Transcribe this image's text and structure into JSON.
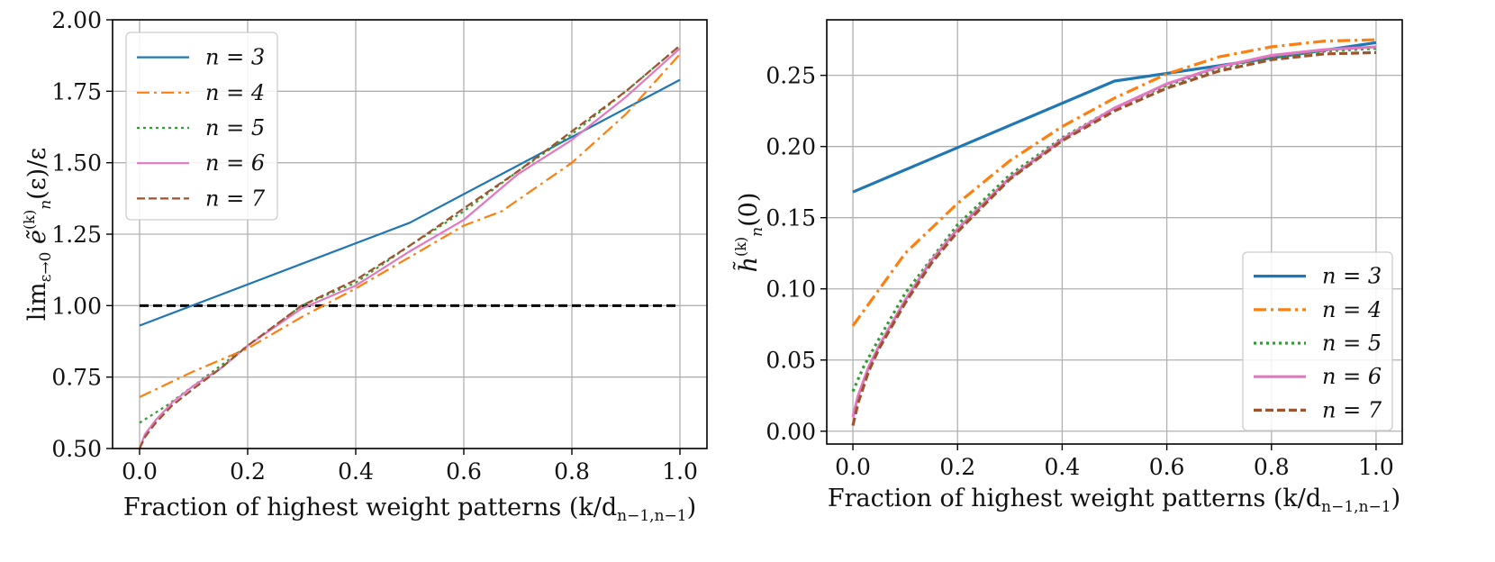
{
  "chart_data": [
    {
      "type": "line",
      "xlabel": "Fraction of highest weight patterns (k/d",
      "xlabel_sub": "n−1,n−1",
      "xlabel_close": ")",
      "ylabel": "lim",
      "ylabel_sub": "ε→0",
      "ylabel_main": " ẽ",
      "ylabel_sup": "(k)",
      "ylabel_sub2": "n",
      "ylabel_tail": "(ε)/ε",
      "xlim": [
        -0.05,
        1.05
      ],
      "ylim": [
        0.5,
        2.0
      ],
      "xticks": [
        0.0,
        0.2,
        0.4,
        0.6,
        0.8,
        1.0
      ],
      "xtick_labels": [
        "0.0",
        "0.2",
        "0.4",
        "0.6",
        "0.8",
        "1.0"
      ],
      "yticks": [
        0.5,
        0.75,
        1.0,
        1.25,
        1.5,
        1.75,
        2.0
      ],
      "ytick_labels": [
        "0.50",
        "0.75",
        "1.00",
        "1.25",
        "1.50",
        "1.75",
        "2.00"
      ],
      "grid": true,
      "legend_position": "top-left",
      "reference_line": {
        "y": 1.0,
        "x_from": 0.0,
        "x_to": 1.0,
        "style": "dashed",
        "color": "#000000"
      },
      "series": [
        {
          "name": "n = 3",
          "color": "#1f77b4",
          "style": "solid",
          "x": [
            0.0,
            0.5,
            1.0
          ],
          "values": [
            0.93,
            1.29,
            1.79
          ]
        },
        {
          "name": "n = 4",
          "color": "#ff7f0e",
          "style": "dashdot",
          "x": [
            0.0,
            0.1,
            0.2,
            0.3,
            0.4,
            0.5,
            0.6,
            0.67,
            0.8,
            0.9,
            1.0
          ],
          "values": [
            0.68,
            0.77,
            0.85,
            0.96,
            1.06,
            1.17,
            1.28,
            1.33,
            1.5,
            1.67,
            1.88
          ]
        },
        {
          "name": "n = 5",
          "color": "#2ca02c",
          "style": "dotted",
          "x": [
            0.0,
            0.05,
            0.1,
            0.2,
            0.3,
            0.4,
            0.5,
            0.6,
            0.7,
            0.8,
            0.9,
            1.0
          ],
          "values": [
            0.59,
            0.65,
            0.72,
            0.86,
            1.0,
            1.08,
            1.21,
            1.33,
            1.47,
            1.6,
            1.75,
            1.91
          ]
        },
        {
          "name": "n = 6",
          "color": "#e377c2",
          "style": "solid",
          "x": [
            0.0,
            0.01,
            0.03,
            0.06,
            0.1,
            0.15,
            0.2,
            0.3,
            0.4,
            0.5,
            0.6,
            0.7,
            0.8,
            0.9,
            1.0
          ],
          "values": [
            0.5,
            0.55,
            0.6,
            0.66,
            0.72,
            0.78,
            0.86,
            0.99,
            1.07,
            1.19,
            1.3,
            1.46,
            1.58,
            1.73,
            1.9
          ]
        },
        {
          "name": "n = 7",
          "color": "#a0522d",
          "style": "dashed",
          "x": [
            0.0,
            0.01,
            0.03,
            0.06,
            0.1,
            0.15,
            0.2,
            0.3,
            0.4,
            0.5,
            0.6,
            0.7,
            0.8,
            0.9,
            1.0
          ],
          "values": [
            0.5,
            0.54,
            0.59,
            0.65,
            0.71,
            0.78,
            0.86,
            1.0,
            1.09,
            1.21,
            1.34,
            1.47,
            1.61,
            1.75,
            1.91
          ]
        }
      ]
    },
    {
      "type": "line",
      "xlabel": "Fraction of highest weight patterns (k/d",
      "xlabel_sub": "n−1,n−1",
      "xlabel_close": ")",
      "ylabel_main": "h̃",
      "ylabel_sup": "(k)",
      "ylabel_sub2": "n",
      "ylabel_tail": "(0)",
      "xlim": [
        -0.05,
        1.05
      ],
      "ylim": [
        -0.009,
        0.289
      ],
      "xticks": [
        0.0,
        0.2,
        0.4,
        0.6,
        0.8,
        1.0
      ],
      "xtick_labels": [
        "0.0",
        "0.2",
        "0.4",
        "0.6",
        "0.8",
        "1.0"
      ],
      "yticks": [
        0.0,
        0.05,
        0.1,
        0.15,
        0.2,
        0.25
      ],
      "ytick_labels": [
        "0.00",
        "0.05",
        "0.10",
        "0.15",
        "0.20",
        "0.25"
      ],
      "grid": true,
      "legend_position": "bottom-right",
      "series": [
        {
          "name": "n = 3",
          "color": "#1f77b4",
          "style": "solid",
          "x": [
            0.0,
            0.5,
            1.0
          ],
          "values": [
            0.168,
            0.246,
            0.273
          ]
        },
        {
          "name": "n = 4",
          "color": "#ff7f0e",
          "style": "dashdot",
          "x": [
            0.0,
            0.1,
            0.2,
            0.3,
            0.4,
            0.5,
            0.6,
            0.7,
            0.8,
            0.9,
            1.0
          ],
          "values": [
            0.074,
            0.125,
            0.16,
            0.19,
            0.214,
            0.234,
            0.251,
            0.263,
            0.27,
            0.274,
            0.275
          ]
        },
        {
          "name": "n = 5",
          "color": "#2ca02c",
          "style": "dotted",
          "x": [
            0.0,
            0.02,
            0.05,
            0.1,
            0.2,
            0.3,
            0.4,
            0.5,
            0.6,
            0.7,
            0.8,
            0.9,
            1.0
          ],
          "values": [
            0.028,
            0.045,
            0.065,
            0.097,
            0.145,
            0.18,
            0.206,
            0.227,
            0.243,
            0.255,
            0.263,
            0.267,
            0.269
          ]
        },
        {
          "name": "n = 6",
          "color": "#e377c2",
          "style": "solid",
          "x": [
            0.0,
            0.01,
            0.03,
            0.05,
            0.1,
            0.15,
            0.2,
            0.3,
            0.4,
            0.5,
            0.6,
            0.7,
            0.8,
            0.9,
            1.0
          ],
          "values": [
            0.01,
            0.025,
            0.045,
            0.06,
            0.092,
            0.12,
            0.142,
            0.178,
            0.205,
            0.227,
            0.244,
            0.256,
            0.264,
            0.268,
            0.27
          ]
        },
        {
          "name": "n = 7",
          "color": "#a0522d",
          "style": "dashed",
          "x": [
            0.0,
            0.01,
            0.03,
            0.05,
            0.1,
            0.15,
            0.2,
            0.3,
            0.4,
            0.5,
            0.6,
            0.7,
            0.8,
            0.9,
            1.0
          ],
          "values": [
            0.004,
            0.02,
            0.042,
            0.058,
            0.09,
            0.118,
            0.14,
            0.177,
            0.204,
            0.225,
            0.241,
            0.253,
            0.261,
            0.265,
            0.266
          ]
        }
      ]
    }
  ]
}
